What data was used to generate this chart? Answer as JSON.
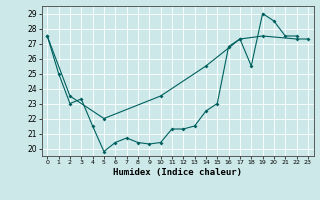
{
  "xlabel": "Humidex (Indice chaleur)",
  "bg_color": "#cce8e8",
  "line_color": "#006060",
  "grid_color": "#b0d4d4",
  "xlim": [
    -0.5,
    23.5
  ],
  "ylim": [
    19.5,
    29.5
  ],
  "yticks": [
    20,
    21,
    22,
    23,
    24,
    25,
    26,
    27,
    28,
    29
  ],
  "xticks": [
    0,
    1,
    2,
    3,
    4,
    5,
    6,
    7,
    8,
    9,
    10,
    11,
    12,
    13,
    14,
    15,
    16,
    17,
    18,
    19,
    20,
    21,
    22,
    23
  ],
  "line1_x": [
    0,
    1,
    2,
    3,
    4,
    5,
    6,
    7,
    8,
    9,
    10,
    11,
    12,
    13,
    14,
    15,
    16,
    17,
    18,
    19,
    20,
    21,
    22
  ],
  "line1_y": [
    27.5,
    25.0,
    23.0,
    23.3,
    21.5,
    19.8,
    20.4,
    20.7,
    20.4,
    20.3,
    20.4,
    21.3,
    21.3,
    21.5,
    22.5,
    23.0,
    26.8,
    27.3,
    25.5,
    29.0,
    28.5,
    27.5,
    27.5
  ],
  "line2_x": [
    0,
    2,
    5,
    10,
    14,
    17,
    19,
    22,
    23
  ],
  "line2_y": [
    27.5,
    23.5,
    22.0,
    23.5,
    25.5,
    27.3,
    27.5,
    27.3,
    27.3
  ]
}
